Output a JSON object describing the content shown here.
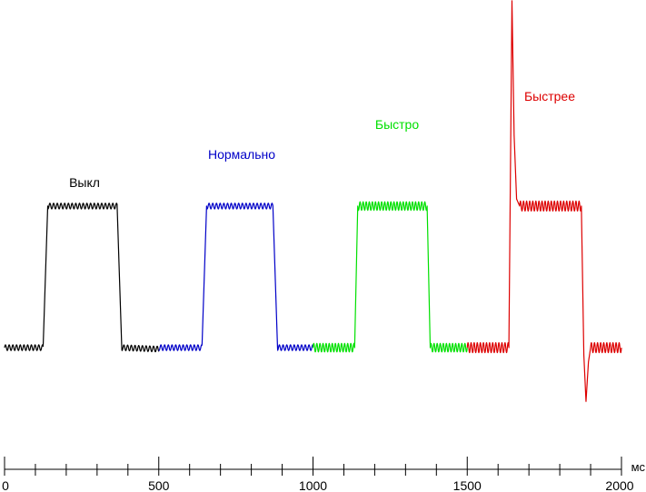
{
  "chart_data": {
    "type": "line",
    "xunit": "мс",
    "xlim": [
      0,
      2000
    ],
    "ylim": [
      -0.3,
      1.4
    ],
    "grid": false,
    "ticks": {
      "major": [
        0,
        500,
        1000,
        1500,
        2000
      ],
      "major_labels": [
        "0",
        "500",
        "1000",
        "1500",
        "2000"
      ],
      "minor_step": 100
    },
    "series": [
      {
        "name": "Выкл",
        "color": "#000000",
        "x_range": [
          0,
          500
        ],
        "points": [
          [
            0,
            0
          ],
          [
            125,
            0
          ],
          [
            140,
            1
          ],
          [
            365,
            1
          ],
          [
            380,
            0
          ],
          [
            500,
            -0.01
          ]
        ],
        "ripple_amplitude": 0.02,
        "ripple_period": 12
      },
      {
        "name": "Нормально",
        "color": "#0000c8",
        "x_range": [
          500,
          1000
        ],
        "points": [
          [
            500,
            0
          ],
          [
            640,
            0
          ],
          [
            655,
            1
          ],
          [
            870,
            1
          ],
          [
            885,
            0
          ],
          [
            1000,
            0
          ]
        ],
        "ripple_amplitude": 0.02,
        "ripple_period": 12
      },
      {
        "name": "Быстро",
        "color": "#00e000",
        "x_range": [
          1000,
          1500
        ],
        "points": [
          [
            1000,
            0
          ],
          [
            1135,
            0
          ],
          [
            1145,
            1
          ],
          [
            1370,
            1
          ],
          [
            1380,
            0
          ],
          [
            1500,
            0
          ]
        ],
        "ripple_amplitude": 0.03,
        "ripple_period": 10
      },
      {
        "name": "Быстрее",
        "color": "#dd0000",
        "x_range": [
          1500,
          2000
        ],
        "points": [
          [
            1500,
            0
          ],
          [
            1635,
            0
          ],
          [
            1645,
            2.45
          ],
          [
            1652,
            1.5
          ],
          [
            1660,
            1.05
          ],
          [
            1670,
            1
          ],
          [
            1870,
            1
          ],
          [
            1878,
            -0.05
          ],
          [
            1885,
            -0.38
          ],
          [
            1893,
            -0.1
          ],
          [
            1900,
            0
          ],
          [
            2000,
            0
          ]
        ],
        "ripple_amplitude": 0.035,
        "ripple_period": 10
      }
    ]
  }
}
